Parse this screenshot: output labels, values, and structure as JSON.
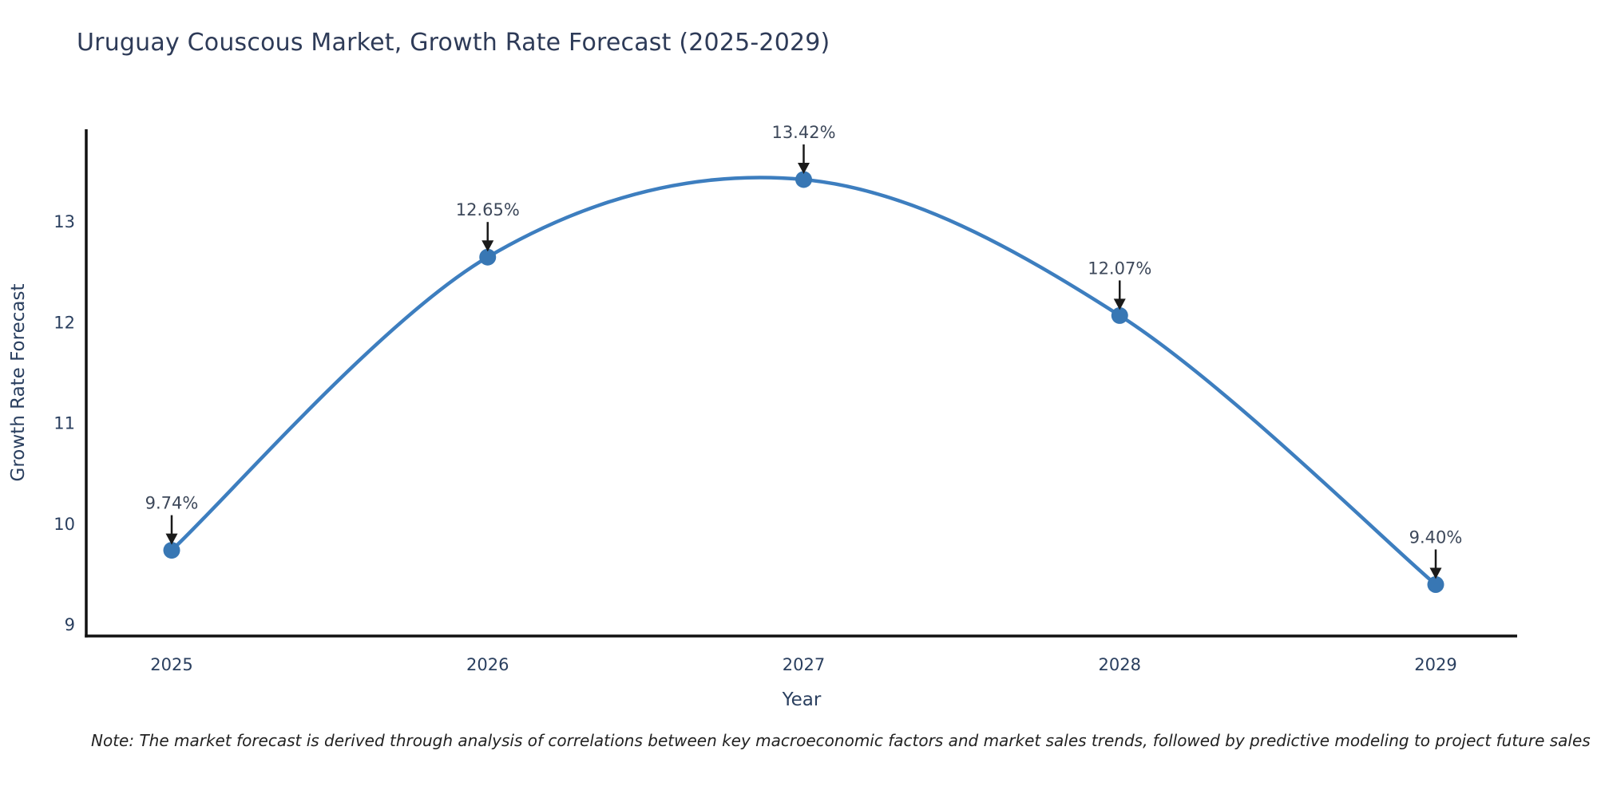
{
  "chart_data": {
    "type": "line",
    "title": "Uruguay Couscous Market, Growth Rate Forecast (2025-2029)",
    "x": [
      2025,
      2026,
      2027,
      2028,
      2029
    ],
    "series": [
      {
        "name": "Growth Rate Forecast",
        "values": [
          9.74,
          12.65,
          13.42,
          12.07,
          9.4
        ]
      }
    ],
    "point_labels": [
      "9.74%",
      "12.65%",
      "13.42%",
      "12.07%",
      "9.40%"
    ],
    "xlabel": "Year",
    "ylabel": "Growth Rate Forecast",
    "xticks": [
      "2025",
      "2026",
      "2027",
      "2028",
      "2029"
    ],
    "yticks": [
      9,
      10,
      11,
      12,
      13
    ],
    "ylim": [
      8.89,
      13.92
    ],
    "grid": false,
    "legend": "none",
    "line_shape": "spline",
    "marker": "circle",
    "annotation_arrow": "down",
    "colors": {
      "line": "#3d7ebf",
      "marker_fill": "#3877b4",
      "axis_line": "#111111",
      "tick_text": "#2a3f5f",
      "title_text": "#2e3b58",
      "annotation_text": "#3d485a",
      "arrow": "#1a1a1a",
      "background": "#ffffff"
    }
  },
  "note": "Note: The market forecast is derived through analysis of correlations between key macroeconomic factors and market sales trends, followed by predictive modeling to project future sales"
}
